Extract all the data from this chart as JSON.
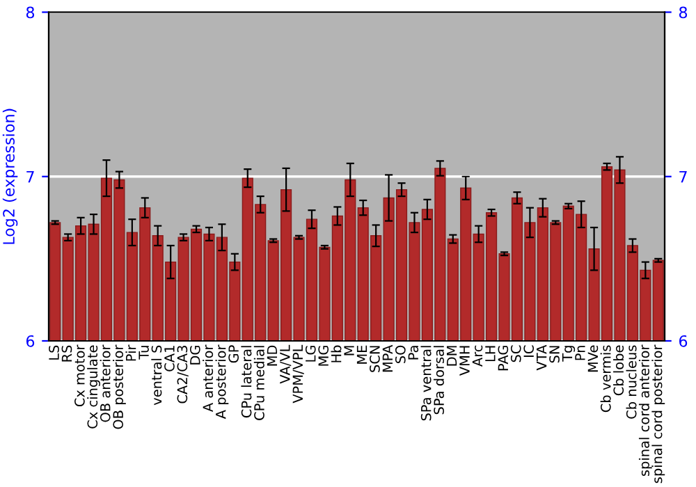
{
  "chart_data": {
    "type": "bar",
    "ylabel": "Log2 (expression)",
    "categories": [
      "LS",
      "RS",
      "Cx motor",
      "Cx cingulate",
      "OB anterior",
      "OB posterior",
      "Pir",
      "Tu",
      "ventral S",
      "CA1",
      "CA2/CA3",
      "DG",
      "A anterior",
      "A posterior",
      "GP",
      "CPu lateral",
      "CPu medial",
      "MD",
      "VA/VL",
      "VPM/VPL",
      "LG",
      "MG",
      "Hb",
      "M",
      "ME",
      "SCN",
      "MPA",
      "SO",
      "Pa",
      "SPa ventral",
      "SPa dorsal",
      "DM",
      "VMH",
      "Arc",
      "LH",
      "PAG",
      "SC",
      "IC",
      "VTA",
      "SN",
      "Tg",
      "Pn",
      "MVe",
      "Cb vermis",
      "Cb lobe",
      "Cb nucleus",
      "spinal cord anterior",
      "spinal cord posterior"
    ],
    "values": [
      6.72,
      6.63,
      6.7,
      6.71,
      6.99,
      6.98,
      6.66,
      6.81,
      6.64,
      6.48,
      6.63,
      6.68,
      6.65,
      6.63,
      6.48,
      6.99,
      6.83,
      6.61,
      6.92,
      6.63,
      6.74,
      6.57,
      6.76,
      6.98,
      6.81,
      6.64,
      6.87,
      6.92,
      6.72,
      6.8,
      7.05,
      6.62,
      6.93,
      6.65,
      6.78,
      6.53,
      6.87,
      6.72,
      6.81,
      6.72,
      6.82,
      6.77,
      6.56,
      7.06,
      7.04,
      6.58,
      6.43,
      6.49
    ],
    "errors": [
      0.01,
      0.02,
      0.05,
      0.06,
      0.11,
      0.05,
      0.08,
      0.06,
      0.06,
      0.1,
      0.02,
      0.02,
      0.04,
      0.08,
      0.05,
      0.055,
      0.05,
      0.01,
      0.13,
      0.01,
      0.055,
      0.01,
      0.055,
      0.1,
      0.045,
      0.065,
      0.14,
      0.04,
      0.06,
      0.06,
      0.045,
      0.025,
      0.07,
      0.05,
      0.02,
      0.01,
      0.035,
      0.09,
      0.055,
      0.01,
      0.015,
      0.08,
      0.13,
      0.02,
      0.08,
      0.04,
      0.05,
      0.01
    ],
    "color": "#b22a2a",
    "ylim": [
      6,
      8
    ],
    "yticks": [
      6,
      7,
      8
    ],
    "y2lim": [
      6,
      8
    ],
    "y2ticks": [
      6,
      7,
      8
    ],
    "grid": "y"
  }
}
